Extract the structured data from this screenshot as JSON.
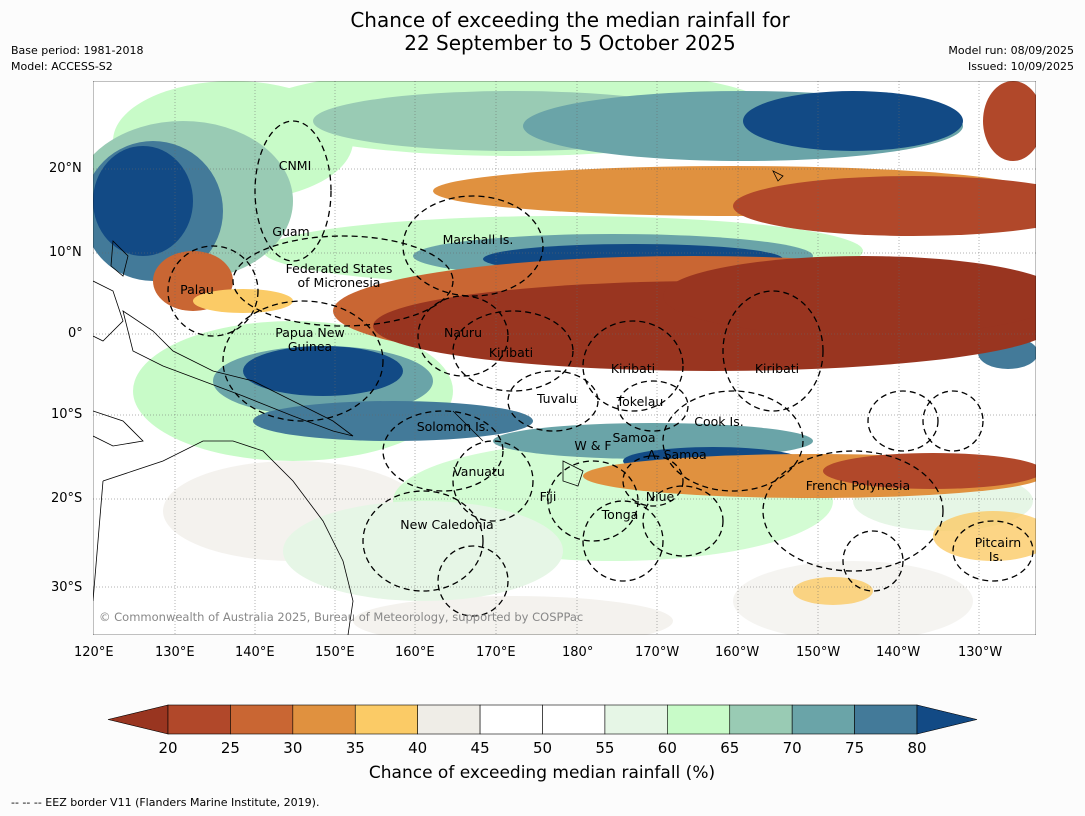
{
  "header": {
    "title_line1": "Chance of exceeding the median rainfall for",
    "title_line2": "22 September to 5 October 2025",
    "base_period": "Base period: 1981-2018",
    "model": "Model: ACCESS-S2",
    "model_run": "Model run: 08/09/2025",
    "issued": "Issued: 10/09/2025"
  },
  "map": {
    "copyright": "© Commonwealth of Australia 2025, Bureau of Meteorology, supported by COSPPac",
    "lon_ticks": [
      "120°E",
      "130°E",
      "140°E",
      "150°E",
      "160°E",
      "170°E",
      "180°",
      "170°W",
      "160°W",
      "150°W",
      "140°W",
      "130°W"
    ],
    "lat_ticks": [
      "20°N",
      "10°N",
      "0°",
      "10°S",
      "20°S",
      "30°S"
    ],
    "regions": [
      {
        "id": "cnmi",
        "label": "CNMI"
      },
      {
        "id": "guam",
        "label": "Guam"
      },
      {
        "id": "marshall",
        "label": "Marshall Is."
      },
      {
        "id": "fsm1",
        "label": "Federated States"
      },
      {
        "id": "fsm2",
        "label": "of Micronesia"
      },
      {
        "id": "palau",
        "label": "Palau"
      },
      {
        "id": "png1",
        "label": "Papua New"
      },
      {
        "id": "png2",
        "label": "Guinea"
      },
      {
        "id": "nauru",
        "label": "Nauru"
      },
      {
        "id": "kiribati1",
        "label": "Kiribati"
      },
      {
        "id": "kiribati2",
        "label": "Kiribati"
      },
      {
        "id": "kiribati3",
        "label": "Kiribati"
      },
      {
        "id": "tuvalu",
        "label": "Tuvalu"
      },
      {
        "id": "tokelau",
        "label": "Tokelau"
      },
      {
        "id": "cook",
        "label": "Cook Is."
      },
      {
        "id": "solomon",
        "label": "Solomon Is."
      },
      {
        "id": "wf",
        "label": "W & F"
      },
      {
        "id": "samoa",
        "label": "Samoa"
      },
      {
        "id": "asamoa",
        "label": "A. Samoa"
      },
      {
        "id": "vanuatu",
        "label": "Vanuatu"
      },
      {
        "id": "fiji",
        "label": "Fiji"
      },
      {
        "id": "niue",
        "label": "Niue"
      },
      {
        "id": "tonga",
        "label": "Tonga"
      },
      {
        "id": "frenchpoly",
        "label": "French Polynesia"
      },
      {
        "id": "newcal",
        "label": "New Caledonia"
      },
      {
        "id": "pitcairn1",
        "label": "Pitcairn"
      },
      {
        "id": "pitcairn2",
        "label": "Is."
      }
    ]
  },
  "colorbar": {
    "labels": [
      "20",
      "25",
      "30",
      "35",
      "40",
      "45",
      "50",
      "55",
      "60",
      "65",
      "70",
      "75",
      "80"
    ],
    "colors": [
      "#993520",
      "#b1482a",
      "#c96633",
      "#e0913f",
      "#fbcb66",
      "#efede7",
      "#ffffff",
      "#ffffff",
      "#e6f6e6",
      "#c8fbc8",
      "#99cbb4",
      "#6aa4a8",
      "#437a99",
      "#124a85"
    ],
    "title": "Chance of exceeding median rainfall (%)"
  },
  "footnote": "--  --  -- EEZ border V11 (Flanders Marine Institute, 2019)."
}
